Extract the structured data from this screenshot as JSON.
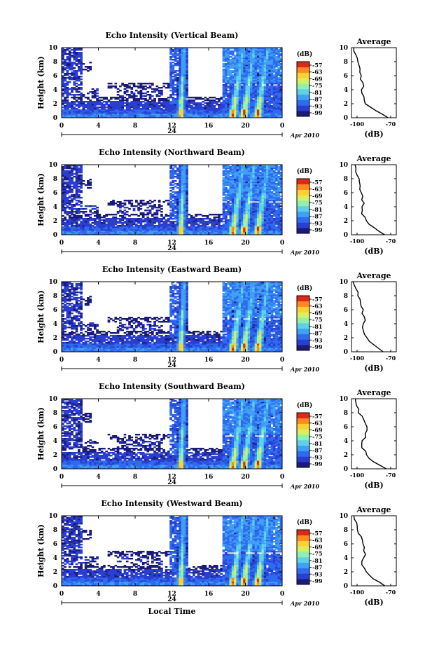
{
  "figure": {
    "xlabel": "Local Time",
    "date_label": "Apr 2010",
    "x_ticks": [
      "0",
      "4",
      "8",
      "12",
      "16",
      "20",
      "0"
    ],
    "day_marker": "24",
    "ylabel": "Height (km)",
    "y_ticks": [
      "0",
      "2",
      "4",
      "6",
      "8",
      "10"
    ],
    "colorbar_unit": "(dB)",
    "colorbar_ticks": [
      "-57",
      "-63",
      "-69",
      "-75",
      "-81",
      "-87",
      "-93",
      "-99"
    ],
    "avg_title": "Average",
    "avg_xlabel": "(dB)",
    "avg_x_ticks": [
      "-100",
      "-70"
    ],
    "avg_y_ticks": [
      "0",
      "2",
      "4",
      "6",
      "8",
      "10"
    ],
    "colormap": [
      "#1b1b7a",
      "#2a3ecf",
      "#2f6bf0",
      "#3fa0f5",
      "#5fd0e8",
      "#8ff0b0",
      "#d8f060",
      "#ffd030",
      "#ff8a20",
      "#e02818"
    ]
  },
  "chart_data": [
    {
      "type": "heatmap",
      "title": "Echo Intensity (Vertical Beam)",
      "xlabel": "Local Time",
      "ylabel": "Height (km)",
      "xlim": [
        0,
        24
      ],
      "ylim": [
        0,
        10
      ],
      "colorbar_range": [
        -99,
        -57
      ],
      "convective_cells_hours": [
        13.0,
        18.7,
        19.9,
        21.4
      ],
      "average_profile": {
        "type": "line",
        "title": "Average",
        "xlabel": "(dB)",
        "xlim": [
          -105,
          -65
        ],
        "height_km": [
          0,
          0.5,
          1,
          1.5,
          2,
          2.5,
          3,
          3.5,
          4,
          4.5,
          5,
          5.5,
          6,
          6.5,
          7,
          7.5,
          8,
          8.5,
          9,
          9.5,
          10
        ],
        "db": [
          -72,
          -78,
          -84,
          -88,
          -92,
          -93,
          -94,
          -95,
          -96,
          -94,
          -95,
          -96,
          -96,
          -97,
          -97,
          -98,
          -99,
          -100,
          -101,
          -102,
          -103
        ]
      }
    },
    {
      "type": "heatmap",
      "title": "Echo Intensity (Northward Beam)",
      "xlabel": "Local Time",
      "ylabel": "Height (km)",
      "xlim": [
        0,
        24
      ],
      "ylim": [
        0,
        10
      ],
      "colorbar_range": [
        -99,
        -57
      ],
      "convective_cells_hours": [
        13.0,
        18.7,
        19.9,
        21.4
      ],
      "average_profile": {
        "type": "line",
        "title": "Average",
        "xlabel": "(dB)",
        "xlim": [
          -105,
          -65
        ],
        "height_km": [
          0,
          0.5,
          1,
          1.5,
          2,
          2.5,
          3,
          3.5,
          4,
          4.5,
          5,
          5.5,
          6,
          6.5,
          7,
          7.5,
          8,
          8.5,
          9,
          9.5,
          10
        ],
        "db": [
          -75,
          -80,
          -85,
          -89,
          -92,
          -93,
          -95,
          -96,
          -96,
          -94,
          -95,
          -95,
          -96,
          -97,
          -98,
          -98,
          -99,
          -100,
          -101,
          -102,
          -102
        ]
      }
    },
    {
      "type": "heatmap",
      "title": "Echo Intensity (Eastward Beam)",
      "xlabel": "Local Time",
      "ylabel": "Height (km)",
      "xlim": [
        0,
        24
      ],
      "ylim": [
        0,
        10
      ],
      "colorbar_range": [
        -99,
        -57
      ],
      "convective_cells_hours": [
        13.0,
        18.7,
        19.9,
        21.4
      ],
      "average_profile": {
        "type": "line",
        "title": "Average",
        "xlabel": "(dB)",
        "xlim": [
          -105,
          -65
        ],
        "height_km": [
          0,
          0.5,
          1,
          1.5,
          2,
          2.5,
          3,
          3.5,
          4,
          4.5,
          5,
          5.5,
          6,
          6.5,
          7,
          7.5,
          8,
          8.5,
          9,
          9.5,
          10
        ],
        "db": [
          -76,
          -80,
          -84,
          -89,
          -92,
          -93,
          -95,
          -96,
          -95,
          -93,
          -94,
          -95,
          -95,
          -96,
          -97,
          -98,
          -99,
          -100,
          -101,
          -102,
          -103
        ]
      }
    },
    {
      "type": "heatmap",
      "title": "Echo Intensity (Southward Beam)",
      "xlabel": "Local Time",
      "ylabel": "Height (km)",
      "xlim": [
        0,
        24
      ],
      "ylim": [
        0,
        10
      ],
      "colorbar_range": [
        -99,
        -57
      ],
      "convective_cells_hours": [
        13.0,
        18.7,
        19.9,
        21.4
      ],
      "average_profile": {
        "type": "line",
        "title": "Average",
        "xlabel": "(dB)",
        "xlim": [
          -105,
          -65
        ],
        "height_km": [
          0,
          0.5,
          1,
          1.5,
          2,
          2.5,
          3,
          3.5,
          4,
          4.5,
          5,
          5.5,
          6,
          6.5,
          7,
          7.5,
          8,
          8.5,
          9,
          9.5,
          10
        ],
        "db": [
          -74,
          -80,
          -85,
          -89,
          -92,
          -93,
          -95,
          -96,
          -95,
          -93,
          -93,
          -92,
          -92,
          -93,
          -94,
          -96,
          -98,
          -99,
          -100,
          -101,
          -102
        ]
      }
    },
    {
      "type": "heatmap",
      "title": "Echo Intensity (Westward Beam)",
      "xlabel": "Local Time",
      "ylabel": "Height (km)",
      "xlim": [
        0,
        24
      ],
      "ylim": [
        0,
        10
      ],
      "colorbar_range": [
        -99,
        -57
      ],
      "convective_cells_hours": [
        13.0,
        18.7,
        19.9,
        21.4
      ],
      "average_profile": {
        "type": "line",
        "title": "Average",
        "xlabel": "(dB)",
        "xlim": [
          -105,
          -65
        ],
        "height_km": [
          0,
          0.5,
          1,
          1.5,
          2,
          2.5,
          3,
          3.5,
          4,
          4.5,
          5,
          5.5,
          6,
          6.5,
          7,
          7.5,
          8,
          8.5,
          9,
          9.5,
          10
        ],
        "db": [
          -75,
          -80,
          -85,
          -89,
          -92,
          -93,
          -95,
          -96,
          -95,
          -93,
          -94,
          -94,
          -95,
          -96,
          -97,
          -98,
          -99,
          -100,
          -101,
          -102,
          -103
        ]
      }
    }
  ]
}
